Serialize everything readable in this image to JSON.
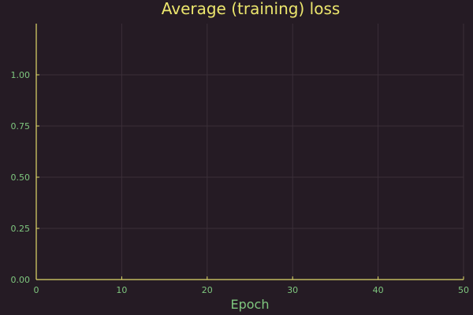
{
  "chart_data": {
    "type": "line",
    "title": "Average (training) loss",
    "xlabel": "Epoch",
    "ylabel": "",
    "xlim": [
      0,
      50
    ],
    "ylim": [
      0,
      1.25
    ],
    "xticks": [
      0,
      10,
      20,
      30,
      40,
      50
    ],
    "xtick_labels": [
      "0",
      "10",
      "20",
      "30",
      "40",
      "50"
    ],
    "yticks": [
      0,
      0.25,
      0.5,
      0.75,
      1.0
    ],
    "ytick_labels": [
      "0.00",
      "0.25",
      "0.50",
      "0.75",
      "1.00"
    ],
    "grid": true,
    "legend": "none",
    "series": [],
    "colors": {
      "background": "#251b24",
      "title": "#ece66d",
      "labels": "#7fc77f",
      "axis": "#e0d96a",
      "grid": "#3a2f38"
    }
  }
}
